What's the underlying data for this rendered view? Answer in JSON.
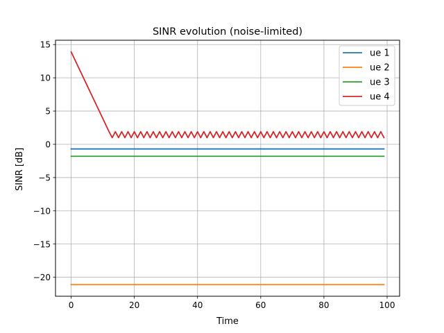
{
  "chart_data": {
    "type": "line",
    "title": "SINR evolution (noise-limited)",
    "xlabel": "Time",
    "ylabel": "SINR [dB]",
    "xlim": [
      -4.95,
      103.95
    ],
    "ylim": [
      -22.85,
      15.65
    ],
    "xticks": [
      0,
      20,
      40,
      60,
      80,
      100
    ],
    "yticks": [
      -20,
      -15,
      -10,
      -5,
      0,
      5,
      10,
      15
    ],
    "xtick_labels": [
      "0",
      "20",
      "40",
      "60",
      "80",
      "100"
    ],
    "ytick_labels": [
      "−20",
      "−15",
      "−10",
      "−5",
      "0",
      "5",
      "10",
      "15"
    ],
    "grid": true,
    "legend_position": "top-right",
    "series": [
      {
        "name": "ue 1",
        "color": "#1f77b4",
        "x": [
          0,
          99
        ],
        "y": [
          -0.7,
          -0.7
        ]
      },
      {
        "name": "ue 2",
        "color": "#ff7f0e",
        "x": [
          0,
          99
        ],
        "y": [
          -21.1,
          -21.1
        ]
      },
      {
        "name": "ue 3",
        "color": "#2ca02c",
        "x": [
          0,
          99
        ],
        "y": [
          -1.8,
          -1.8
        ]
      },
      {
        "name": "ue 4",
        "color": "#d62728",
        "x": [
          0,
          1,
          2,
          3,
          4,
          5,
          6,
          7,
          8,
          9,
          10,
          11,
          12,
          13,
          14,
          15,
          16,
          17,
          18,
          19,
          20,
          21,
          22,
          23,
          24,
          25,
          26,
          27,
          28,
          29,
          30,
          31,
          32,
          33,
          34,
          35,
          36,
          37,
          38,
          39,
          40,
          41,
          42,
          43,
          44,
          45,
          46,
          47,
          48,
          49,
          50,
          51,
          52,
          53,
          54,
          55,
          56,
          57,
          58,
          59,
          60,
          61,
          62,
          63,
          64,
          65,
          66,
          67,
          68,
          69,
          70,
          71,
          72,
          73,
          74,
          75,
          76,
          77,
          78,
          79,
          80,
          81,
          82,
          83,
          84,
          85,
          86,
          87,
          88,
          89,
          90,
          91,
          92,
          93,
          94,
          95,
          96,
          97,
          98,
          99
        ],
        "y": [
          13.9,
          12.9,
          11.9,
          10.9,
          9.9,
          8.9,
          7.9,
          6.9,
          5.9,
          4.9,
          3.9,
          2.9,
          1.9,
          1.0,
          1.9,
          1.0,
          1.9,
          1.0,
          1.9,
          1.0,
          1.9,
          1.0,
          1.9,
          1.0,
          1.9,
          1.0,
          1.9,
          1.0,
          1.9,
          1.0,
          1.9,
          1.0,
          1.9,
          1.0,
          1.9,
          1.0,
          1.9,
          1.0,
          1.9,
          1.0,
          1.9,
          1.0,
          1.9,
          1.0,
          1.9,
          1.0,
          1.9,
          1.0,
          1.9,
          1.0,
          1.9,
          1.0,
          1.9,
          1.0,
          1.9,
          1.0,
          1.9,
          1.0,
          1.9,
          1.0,
          1.9,
          1.0,
          1.9,
          1.0,
          1.9,
          1.0,
          1.9,
          1.0,
          1.9,
          1.0,
          1.9,
          1.0,
          1.9,
          1.0,
          1.9,
          1.0,
          1.9,
          1.0,
          1.9,
          1.0,
          1.9,
          1.0,
          1.9,
          1.0,
          1.9,
          1.0,
          1.9,
          1.0,
          1.9,
          1.0,
          1.9,
          1.0,
          1.9,
          1.0,
          1.9,
          1.0,
          1.9,
          1.0,
          1.9,
          1.0
        ]
      }
    ]
  }
}
